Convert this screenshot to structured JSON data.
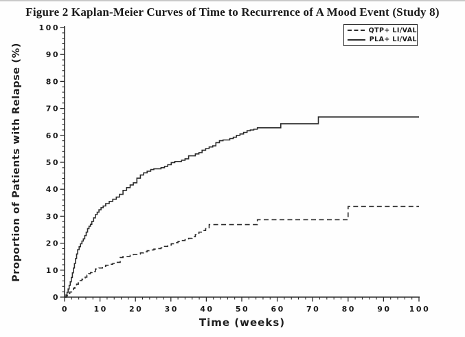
{
  "figure": {
    "title": "Figure 2 Kaplan-Meier Curves of Time to Recurrence of A Mood Event (Study 8)"
  },
  "chart_data": {
    "type": "line",
    "variant": "kaplan_meier_step",
    "title": "Figure 2 Kaplan-Meier Curves of Time to Recurrence of A Mood Event (Study 8)",
    "xlabel": "Time (weeks)",
    "ylabel": "Proportion of Patients with Relapse (%)",
    "xlim": [
      0,
      100
    ],
    "ylim": [
      0,
      100
    ],
    "x_ticks": [
      0,
      10,
      20,
      30,
      40,
      50,
      60,
      70,
      80,
      90,
      100
    ],
    "y_ticks": [
      0,
      10,
      20,
      30,
      40,
      50,
      60,
      70,
      80,
      90,
      100
    ],
    "x_minor_tick_step": 2,
    "y_minor_tick_step": 2,
    "grid": false,
    "axis_color": "#2a2a2a",
    "line_color": "#2b2b2b",
    "legend": {
      "position": "top-right",
      "entries": [
        {
          "label": "QTP+ LI/VAL",
          "style": "dashed"
        },
        {
          "label": "PLA+ LI/VAL",
          "style": "solid"
        }
      ]
    },
    "series": [
      {
        "name": "QTP+ LI/VAL",
        "style": "dashed",
        "color": "#2b2b2b",
        "points": [
          [
            0,
            0
          ],
          [
            0.5,
            0.5
          ],
          [
            1,
            1.4
          ],
          [
            1.5,
            1.9
          ],
          [
            2,
            2.3
          ],
          [
            2.5,
            3.3
          ],
          [
            2.9,
            4.1
          ],
          [
            3.4,
            4.8
          ],
          [
            3.9,
            5.4
          ],
          [
            4.4,
            6.1
          ],
          [
            4.9,
            6.6
          ],
          [
            5.3,
            7.1
          ],
          [
            5.8,
            7.4
          ],
          [
            6.3,
            8.1
          ],
          [
            6.8,
            8.7
          ],
          [
            7.3,
            9.1
          ],
          [
            7.8,
            9.5
          ],
          [
            8.7,
            10.4
          ],
          [
            9.7,
            10.8
          ],
          [
            10.7,
            11.4
          ],
          [
            11.6,
            11.8
          ],
          [
            12.6,
            12.2
          ],
          [
            13.6,
            12.5
          ],
          [
            14.6,
            12.9
          ],
          [
            15.7,
            14.7
          ],
          [
            16.5,
            15.1
          ],
          [
            18.5,
            15.5
          ],
          [
            19.4,
            15.8
          ],
          [
            20.4,
            16
          ],
          [
            21.4,
            16.4
          ],
          [
            22.3,
            16.8
          ],
          [
            23.3,
            17.2
          ],
          [
            24.3,
            17.5
          ],
          [
            25.2,
            17.8
          ],
          [
            26.2,
            18
          ],
          [
            27.2,
            18.3
          ],
          [
            28.2,
            18.8
          ],
          [
            29.1,
            19.3
          ],
          [
            30.1,
            19.8
          ],
          [
            31.1,
            20.2
          ],
          [
            32,
            20.6
          ],
          [
            33,
            21
          ],
          [
            34,
            21.3
          ],
          [
            35,
            21.8
          ],
          [
            36,
            22.4
          ],
          [
            36.9,
            23.2
          ],
          [
            37.9,
            24.1
          ],
          [
            38.8,
            24.7
          ],
          [
            39.8,
            25.4
          ],
          [
            40.8,
            26.9
          ],
          [
            54.4,
            28.7
          ],
          [
            80,
            33.6
          ],
          [
            100,
            33.6
          ]
        ]
      },
      {
        "name": "PLA+ LI/VAL",
        "style": "solid",
        "color": "#2b2b2b",
        "points": [
          [
            0,
            0
          ],
          [
            0.4,
            0.8
          ],
          [
            0.7,
            1.8
          ],
          [
            1,
            3
          ],
          [
            1.3,
            4.4
          ],
          [
            1.6,
            5.7
          ],
          [
            1.9,
            7.3
          ],
          [
            2.2,
            9
          ],
          [
            2.5,
            10.8
          ],
          [
            2.8,
            12.5
          ],
          [
            3.1,
            14.3
          ],
          [
            3.4,
            16
          ],
          [
            3.7,
            17.6
          ],
          [
            4.1,
            18.7
          ],
          [
            4.5,
            19.8
          ],
          [
            4.9,
            20.8
          ],
          [
            5.3,
            21.6
          ],
          [
            5.7,
            22.8
          ],
          [
            6.1,
            24.1
          ],
          [
            6.5,
            25.4
          ],
          [
            6.9,
            26.3
          ],
          [
            7.3,
            27
          ],
          [
            7.7,
            28.1
          ],
          [
            8.2,
            29.4
          ],
          [
            8.7,
            30.6
          ],
          [
            9.2,
            31.5
          ],
          [
            9.7,
            32.4
          ],
          [
            10.3,
            33.2
          ],
          [
            10.9,
            33.8
          ],
          [
            11.6,
            34.7
          ],
          [
            12.6,
            35.5
          ],
          [
            13.6,
            36.3
          ],
          [
            14.6,
            37.1
          ],
          [
            15.5,
            38.1
          ],
          [
            16.5,
            39.6
          ],
          [
            17.5,
            40.6
          ],
          [
            18.5,
            41.6
          ],
          [
            19.4,
            42.4
          ],
          [
            20.4,
            44.1
          ],
          [
            21.4,
            45.3
          ],
          [
            22.3,
            46.1
          ],
          [
            23.3,
            46.7
          ],
          [
            24.3,
            47.3
          ],
          [
            25.2,
            47.6
          ],
          [
            27.2,
            48
          ],
          [
            28.2,
            48.5
          ],
          [
            29.1,
            49.1
          ],
          [
            30.1,
            49.9
          ],
          [
            31.1,
            50.3
          ],
          [
            33,
            50.8
          ],
          [
            34,
            51.3
          ],
          [
            35,
            52.4
          ],
          [
            36.9,
            53.1
          ],
          [
            37.9,
            53.6
          ],
          [
            38.8,
            54.5
          ],
          [
            39.8,
            55.1
          ],
          [
            40.8,
            55.7
          ],
          [
            41.8,
            56.1
          ],
          [
            42.7,
            57.3
          ],
          [
            43.7,
            58
          ],
          [
            44.7,
            58.3
          ],
          [
            46.6,
            58.8
          ],
          [
            47.6,
            59.3
          ],
          [
            48.5,
            60
          ],
          [
            49.5,
            60.5
          ],
          [
            50.5,
            61.1
          ],
          [
            51.5,
            61.7
          ],
          [
            52.4,
            62
          ],
          [
            53.4,
            62.3
          ],
          [
            54.4,
            62.8
          ],
          [
            61,
            64.3
          ],
          [
            71.6,
            66.8
          ],
          [
            100,
            66.8
          ]
        ]
      }
    ]
  }
}
